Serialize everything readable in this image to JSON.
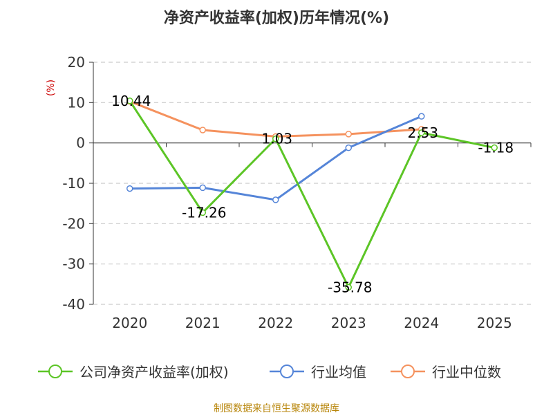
{
  "chart_data": {
    "type": "line",
    "title": "净资产收益率(加权)历年情况(%)",
    "ylabel": "(%)",
    "xlabel": "",
    "categories": [
      "2020",
      "2021",
      "2022",
      "2023",
      "2024",
      "2025"
    ],
    "ylim": [
      -40,
      20
    ],
    "yticks": [
      20,
      10,
      0,
      -10,
      -20,
      -30,
      -40
    ],
    "ytick_labels": [
      "20",
      "10",
      "0",
      "-10",
      "-20",
      "-30",
      "-40"
    ],
    "grid": true,
    "legend_position": "bottom",
    "series": [
      {
        "name": "公司净资产收益率(加权)",
        "color": "#5cc526",
        "values": [
          10.44,
          -17.26,
          1.03,
          -35.78,
          2.53,
          -1.18
        ],
        "labels": [
          "10.44",
          "-17.26",
          "1.03",
          "-35.78",
          "2.53",
          "-1.18"
        ]
      },
      {
        "name": "行业均值",
        "color": "#5585d8",
        "values": [
          -11.3,
          -11.1,
          -14.1,
          -1.2,
          6.6,
          null
        ]
      },
      {
        "name": "行业中位数",
        "color": "#f5925e",
        "values": [
          10.3,
          3.2,
          1.6,
          2.2,
          3.4,
          null
        ]
      }
    ]
  },
  "source": "制图数据来自恒生聚源数据库"
}
